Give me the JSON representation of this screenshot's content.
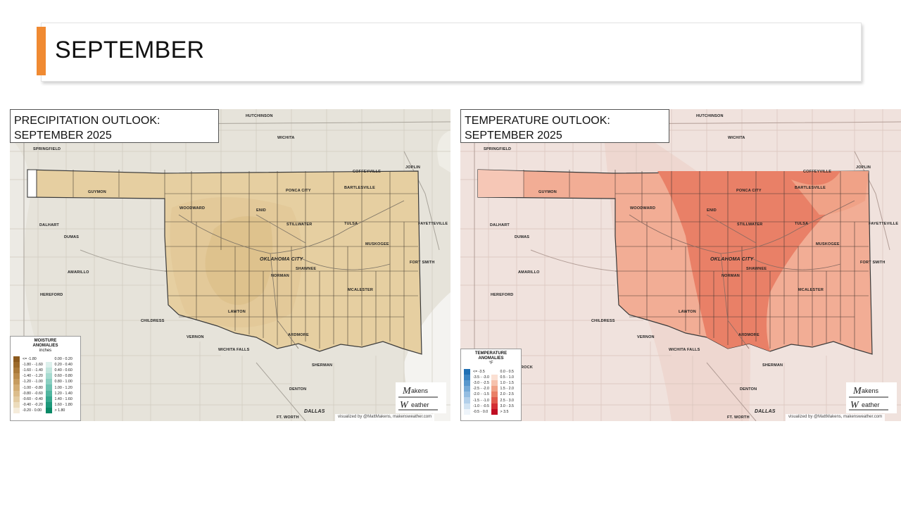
{
  "slide": {
    "title": "SEPTEMBER",
    "accent_color": "#f08a32"
  },
  "precip_map": {
    "heading_line1": "PRECIPITATION OUTLOOK:",
    "heading_line2": "SEPTEMBER 2025",
    "cities": {
      "hutchinson": "HUTCHINSON",
      "wichita": "WICHITA",
      "springfield": "SPRINGFIELD",
      "coffeyville": "COFFEYVILLE",
      "joplin": "JOPLIN",
      "guymon": "GUYMON",
      "ponca_city": "PONCA CITY",
      "bartlesville": "BARTLESVILLE",
      "woodward": "WOODWARD",
      "enid": "ENID",
      "fayetteville": "FAYETTEVILLE",
      "dalhart": "DALHART",
      "stillwater": "STILLWATER",
      "tulsa": "TULSA",
      "muskogee": "MUSKOGEE",
      "dumas": "DUMAS",
      "oklahoma_city": "OKLAHOMA CITY",
      "fort_smith": "FORT SMITH",
      "shawnee": "SHAWNEE",
      "amarillo": "AMARILLO",
      "norman": "NORMAN",
      "mcalester": "MCALESTER",
      "hereford": "HEREFORD",
      "lawton": "LAWTON",
      "childress": "CHILDRESS",
      "vernon": "VERNON",
      "ardmore": "ARDMORE",
      "wichita_falls": "WICHITA FALLS",
      "sherman": "SHERMAN",
      "denton": "DENTON",
      "dallas": "DALLAS",
      "fort_worth": "FT. WORTH"
    },
    "legend": {
      "title_line1": "MOISTURE",
      "title_line2": "ANOMALIES",
      "unit": "inches",
      "col1": [
        {
          "label": "<= -1.80",
          "color": "#8c5a1e"
        },
        {
          "label": "-1.80 - -1.60",
          "color": "#9c6a2b"
        },
        {
          "label": "-1.60 - -1.40",
          "color": "#ab7a3a"
        },
        {
          "label": "-1.40 - -1.20",
          "color": "#ba8b4c"
        },
        {
          "label": "-1.20 - -1.00",
          "color": "#c79c5f"
        },
        {
          "label": "-1.00 - -0.80",
          "color": "#d3ad74"
        },
        {
          "label": "-0.80 - -0.60",
          "color": "#dcbd8b"
        },
        {
          "label": "-0.60 - -0.40",
          "color": "#e4cca2"
        },
        {
          "label": "-0.40 - -0.20",
          "color": "#ecdcbc"
        },
        {
          "label": "-0.20 - 0.00",
          "color": "#f5ecdb"
        }
      ],
      "col2": [
        {
          "label": "0.00 - 0.20",
          "color": "#ffffff"
        },
        {
          "label": "0.20 - 0.40",
          "color": "#dcf0ec"
        },
        {
          "label": "0.40 - 0.60",
          "color": "#c2e6de"
        },
        {
          "label": "0.60 - 0.80",
          "color": "#a6dbd0"
        },
        {
          "label": "0.80 - 1.00",
          "color": "#8acfc1"
        },
        {
          "label": "1.00 - 1.20",
          "color": "#6dc2b1"
        },
        {
          "label": "1.20 - 1.40",
          "color": "#50b59f"
        },
        {
          "label": "1.40 - 1.60",
          "color": "#35a78d"
        },
        {
          "label": "1.60 - 1.80",
          "color": "#1d987a"
        },
        {
          "label": "> 1.80",
          "color": "#0a8966"
        }
      ]
    },
    "logo_line1": "Makens",
    "logo_line2": "Weather",
    "credit": "visualized by @MattMakens, makensweather.com"
  },
  "temp_map": {
    "heading_line1": "TEMPERATURE OUTLOOK:",
    "heading_line2": "SEPTEMBER 2025",
    "cities": {
      "hutchinson": "HUTCHINSON",
      "wichita": "WICHITA",
      "springfield": "SPRINGFIELD",
      "coffeyville": "COFFEYVILLE",
      "joplin": "JOPLIN",
      "guymon": "GUYMON",
      "ponca_city": "PONCA CITY",
      "bartlesville": "BARTLESVILLE",
      "woodward": "WOODWARD",
      "enid": "ENID",
      "fayetteville": "FAYETTEVILLE",
      "dalhart": "DALHART",
      "stillwater": "STILLWATER",
      "tulsa": "TULSA",
      "muskogee": "MUSKOGEE",
      "dumas": "DUMAS",
      "oklahoma_city": "OKLAHOMA CITY",
      "fort_smith": "FORT SMITH",
      "shawnee": "SHAWNEE",
      "amarillo": "AMARILLO",
      "norman": "NORMAN",
      "mcalester": "MCALESTER",
      "hereford": "HEREFORD",
      "lawton": "LAWTON",
      "childress": "CHILDRESS",
      "vernon": "VERNON",
      "ardmore": "ARDMORE",
      "wichita_falls": "WICHITA FALLS",
      "sherman": "SHERMAN",
      "denton": "DENTON",
      "dallas": "DALLAS",
      "fort_worth": "FT. WORTH",
      "rock": "ROCK"
    },
    "legend": {
      "title_line1": "TEMPERATURE",
      "title_line2": "ANOMALIES",
      "unit": "°F",
      "col1": [
        {
          "label": "<= -3.5",
          "color": "#1f6fb4"
        },
        {
          "label": "-3.5 - -3.0",
          "color": "#3b84c2"
        },
        {
          "label": "-3.0 - -2.5",
          "color": "#5897cd"
        },
        {
          "label": "-2.5 - -2.0",
          "color": "#76aad7"
        },
        {
          "label": "-2.0 - -1.5",
          "color": "#94bde1"
        },
        {
          "label": "-1.5 - -1.0",
          "color": "#b3d0ea"
        },
        {
          "label": "-1.0 - -0.5",
          "color": "#d1e3f2"
        },
        {
          "label": "-0.5 - 0.0",
          "color": "#eef4fa"
        }
      ],
      "col2": [
        {
          "label": "0.0 - 0.5",
          "color": "#ffffff"
        },
        {
          "label": "0.5 - 1.0",
          "color": "#fbe0d3"
        },
        {
          "label": "1.0 - 1.5",
          "color": "#f6c2ad"
        },
        {
          "label": "1.5 - 2.0",
          "color": "#f0a287"
        },
        {
          "label": "2.0 - 2.5",
          "color": "#e98067"
        },
        {
          "label": "2.5 - 3.0",
          "color": "#e05a4c"
        },
        {
          "label": "3.0 - 3.5",
          "color": "#d42f34"
        },
        {
          "label": "> 3.5",
          "color": "#c00d22"
        }
      ]
    },
    "logo_line1": "Makens",
    "logo_line2": "Weather",
    "credit": "visualized by @MattMakens, makensweather.com"
  }
}
